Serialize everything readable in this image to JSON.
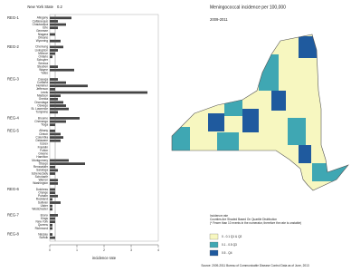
{
  "chart_data": {
    "type": "bar",
    "state_label": "New York State",
    "state_value": 0.2,
    "xlabel": "incidence rate",
    "xlim": [
      0,
      4
    ],
    "xticks": [
      0,
      1,
      2,
      3,
      4
    ],
    "color": "#444444",
    "regions": [
      {
        "name": "REG-1",
        "counties": [
          "Allegany",
          "Cattaraugus",
          "Chautauqua",
          "Erie",
          "Genesee",
          "Niagara",
          "Orleans",
          "Wyoming"
        ],
        "values": [
          0.8,
          0.3,
          0.6,
          0.3,
          0,
          0.2,
          0,
          0.4
        ]
      },
      {
        "name": "REG-2",
        "counties": [
          "Chemung",
          "Livingston",
          "Monroe",
          "Ontario",
          "Schuyler",
          "Seneca",
          "Steuben",
          "Wayne",
          "Yates"
        ],
        "values": [
          0.5,
          0.3,
          0.2,
          0.1,
          0,
          0,
          0.3,
          0.9,
          0
        ]
      },
      {
        "name": "REG-3",
        "counties": [
          "Cayuga",
          "Cortland",
          "Herkimer",
          "Jefferson",
          "Lewis",
          "Madison",
          "Oneida",
          "Onondaga",
          "Oswego",
          "St. Lawrence",
          "Tompkins"
        ],
        "values": [
          0.3,
          0.6,
          1.4,
          0.2,
          3.6,
          0.4,
          0.3,
          0.5,
          0.6,
          0.7,
          0.3
        ]
      },
      {
        "name": "REG-4",
        "counties": [
          "Broome",
          "Chenango",
          "Tioga"
        ],
        "values": [
          1.1,
          0.6,
          0.2
        ]
      },
      {
        "name": "REG-5",
        "counties": [
          "Albany",
          "Clinton",
          "Columbia",
          "Delaware",
          "Essex",
          "Franklin",
          "Fulton",
          "Greene",
          "Hamilton",
          "Montgomery",
          "Otsego",
          "Rensselaer",
          "Saratoga",
          "Schenectady",
          "Schoharie",
          "Warren",
          "Washington"
        ],
        "values": [
          0.2,
          0.4,
          0.5,
          0.4,
          0,
          0,
          0,
          0,
          0,
          0.7,
          1.3,
          0.2,
          0.3,
          0.2,
          0,
          0.3,
          0.3
        ]
      },
      {
        "name": "REG-6",
        "counties": [
          "Dutchess",
          "Orange",
          "Putnam",
          "Rockland",
          "Sullivan",
          "Ulster",
          "Westchester"
        ],
        "values": [
          0.2,
          0.2,
          0.3,
          0.1,
          0.4,
          0.1,
          0.1
        ]
      },
      {
        "name": "REG-7",
        "counties": [
          "Bronx",
          "Kings",
          "New York",
          "Queens",
          "Richmond"
        ],
        "values": [
          0.3,
          0.2,
          0.2,
          0.1,
          0.1
        ]
      },
      {
        "name": "REG-8",
        "counties": [
          "Nassau",
          "Suffolk"
        ],
        "values": [
          0.1,
          0.2
        ]
      }
    ]
  },
  "map": {
    "title": "Meningococcal incidence per 100,000",
    "period": "2009-2011",
    "legend_title": "Incidence rate",
    "legend_note": "Counties Are Shaded Based On Quartile Distribution",
    "legend_caveat": "(* Fewer than 10 events in the numerator, therefore the rate is unstable)",
    "legend": [
      {
        "label": "0 - 0.1   Q1 & Q2",
        "color": "#f7f7c0"
      },
      {
        "label": "0.1 - 0.5   Q3",
        "color": "#3fa7b3"
      },
      {
        "label": "0.5 -   Q4",
        "color": "#1f5a9e"
      }
    ],
    "source": "Source: 2009-2011 Bureau of Communicable Disease Control Data as of June, 2013"
  }
}
